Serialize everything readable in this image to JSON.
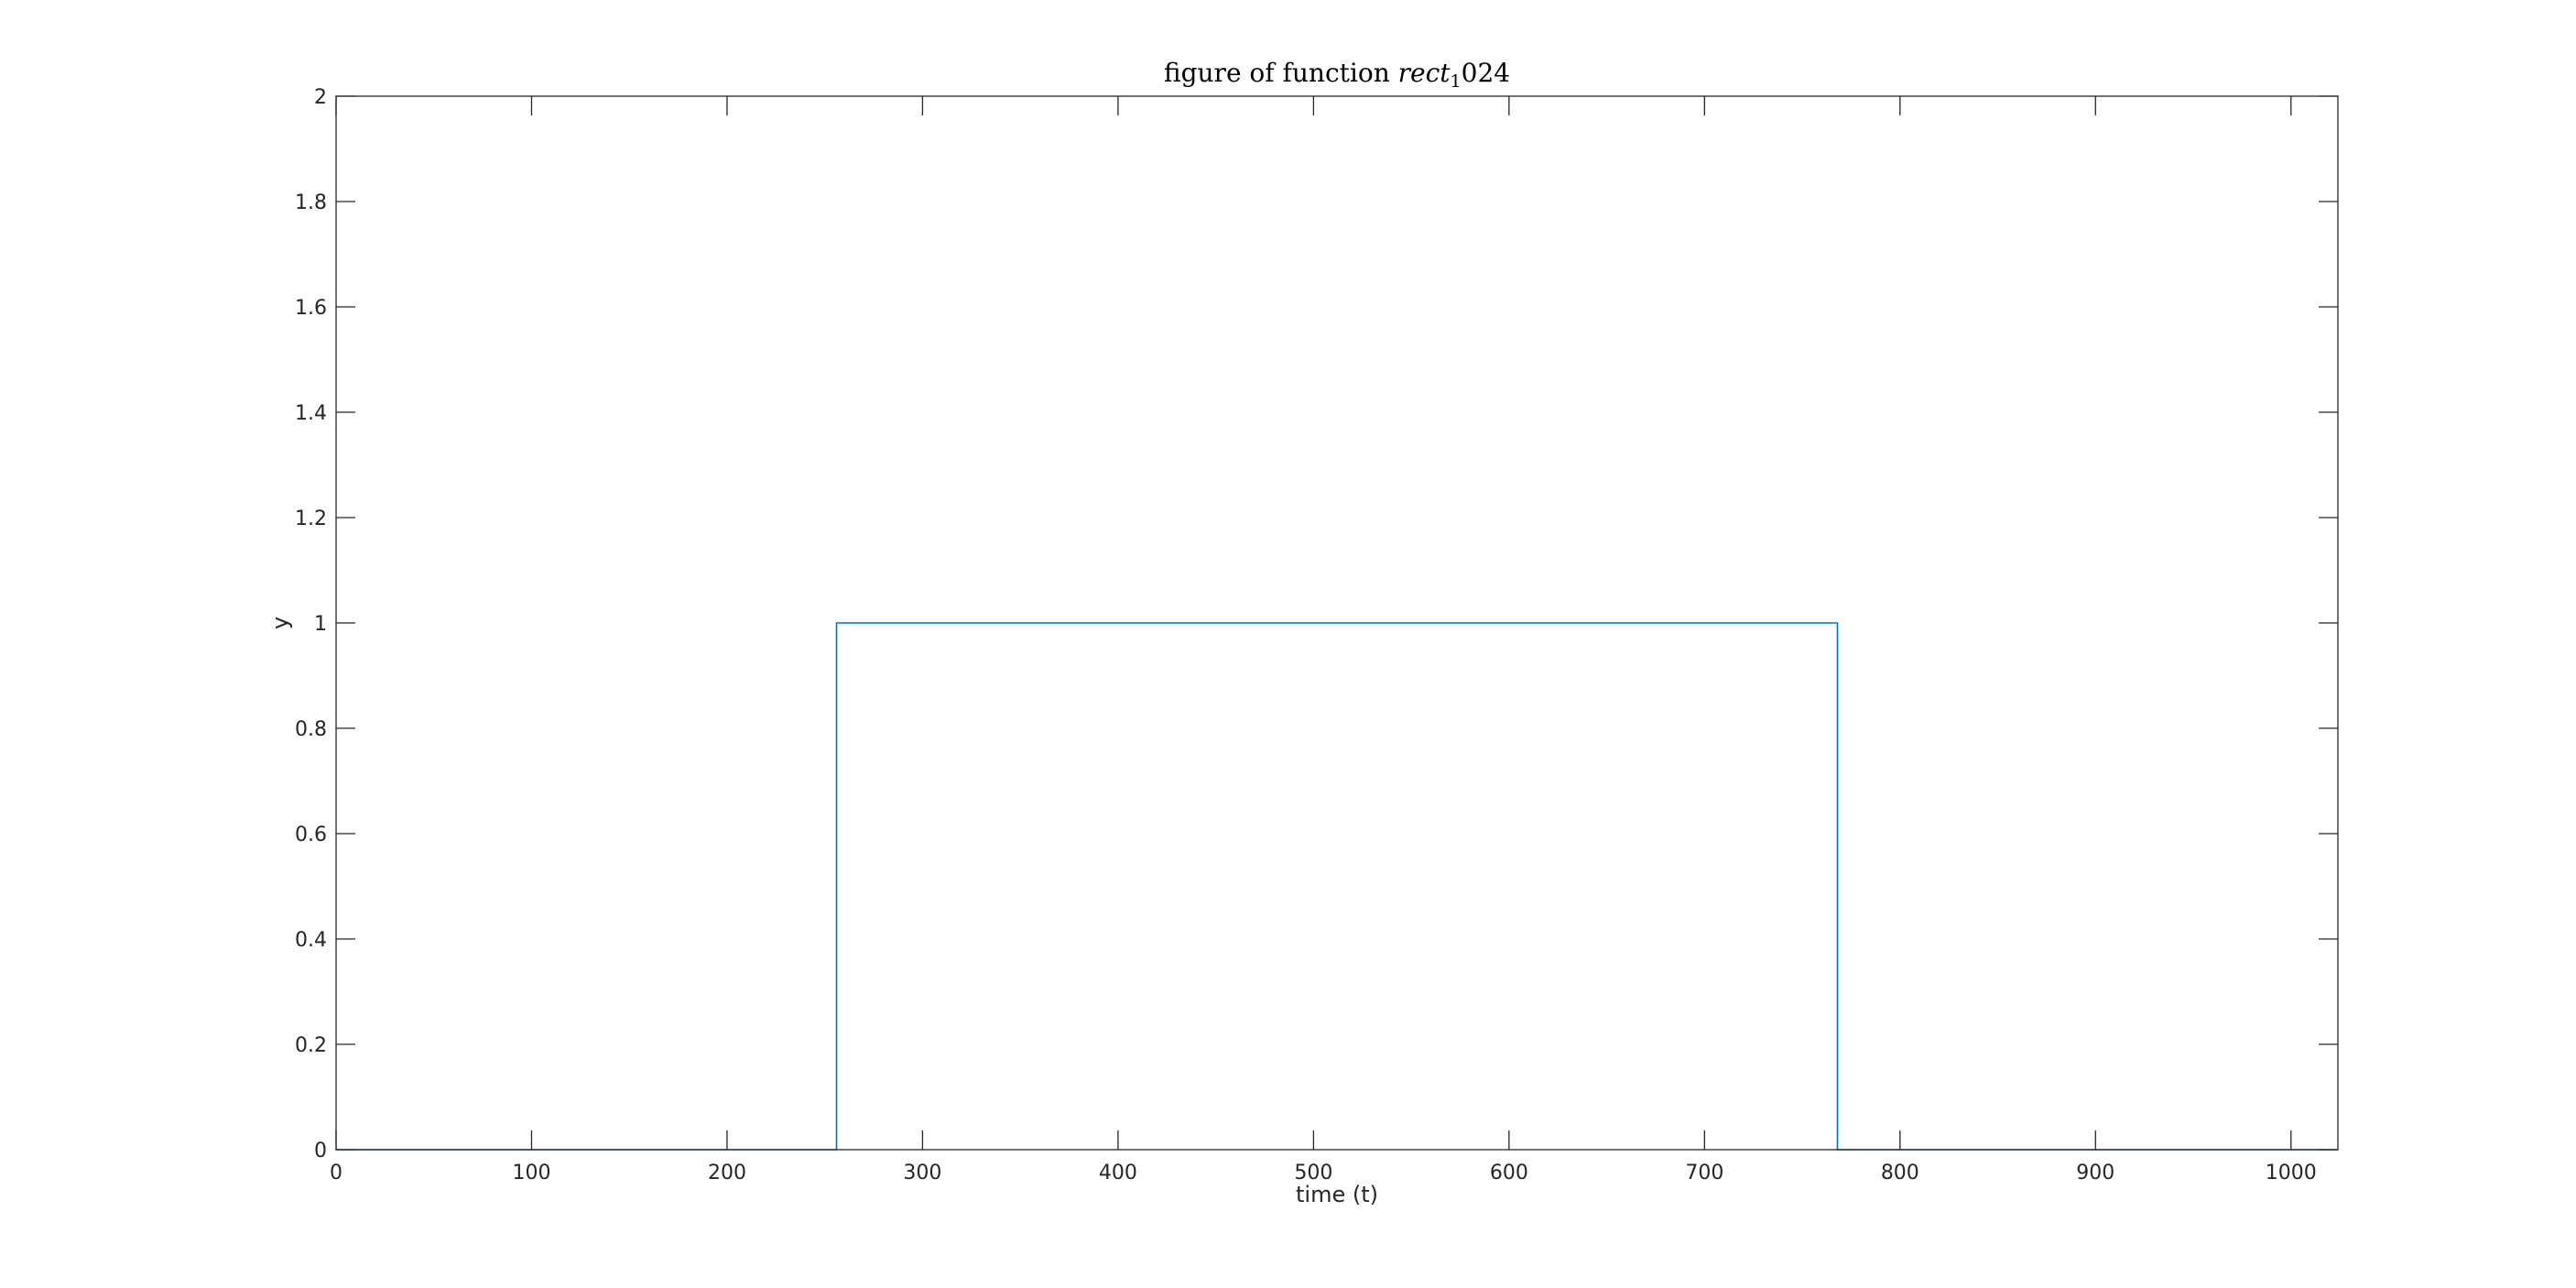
{
  "chart_data": {
    "type": "line",
    "title": {
      "prefix": "figure of function ",
      "math": "rect",
      "subscript": "1",
      "suffix": "024"
    },
    "xlabel": "time (t)",
    "ylabel": "y",
    "xlim": [
      0,
      1024
    ],
    "ylim": [
      0,
      2
    ],
    "xticks": [
      0,
      100,
      200,
      300,
      400,
      500,
      600,
      700,
      800,
      900,
      1000
    ],
    "xtick_labels": [
      "0",
      "100",
      "200",
      "300",
      "400",
      "500",
      "600",
      "700",
      "800",
      "900",
      "1000"
    ],
    "yticks": [
      0,
      0.2,
      0.4,
      0.6,
      0.8,
      1,
      1.2,
      1.4,
      1.6,
      1.8,
      2
    ],
    "ytick_labels": [
      "0",
      "0.2",
      "0.4",
      "0.6",
      "0.8",
      "1",
      "1.2",
      "1.4",
      "1.6",
      "1.8",
      "2"
    ],
    "grid": false,
    "series": [
      {
        "color": "#0072BD",
        "x": [
          0,
          256,
          256,
          256,
          768,
          768,
          768,
          1024
        ],
        "y": [
          0,
          0,
          0.5,
          1,
          1,
          0.5,
          0,
          0
        ]
      }
    ]
  }
}
